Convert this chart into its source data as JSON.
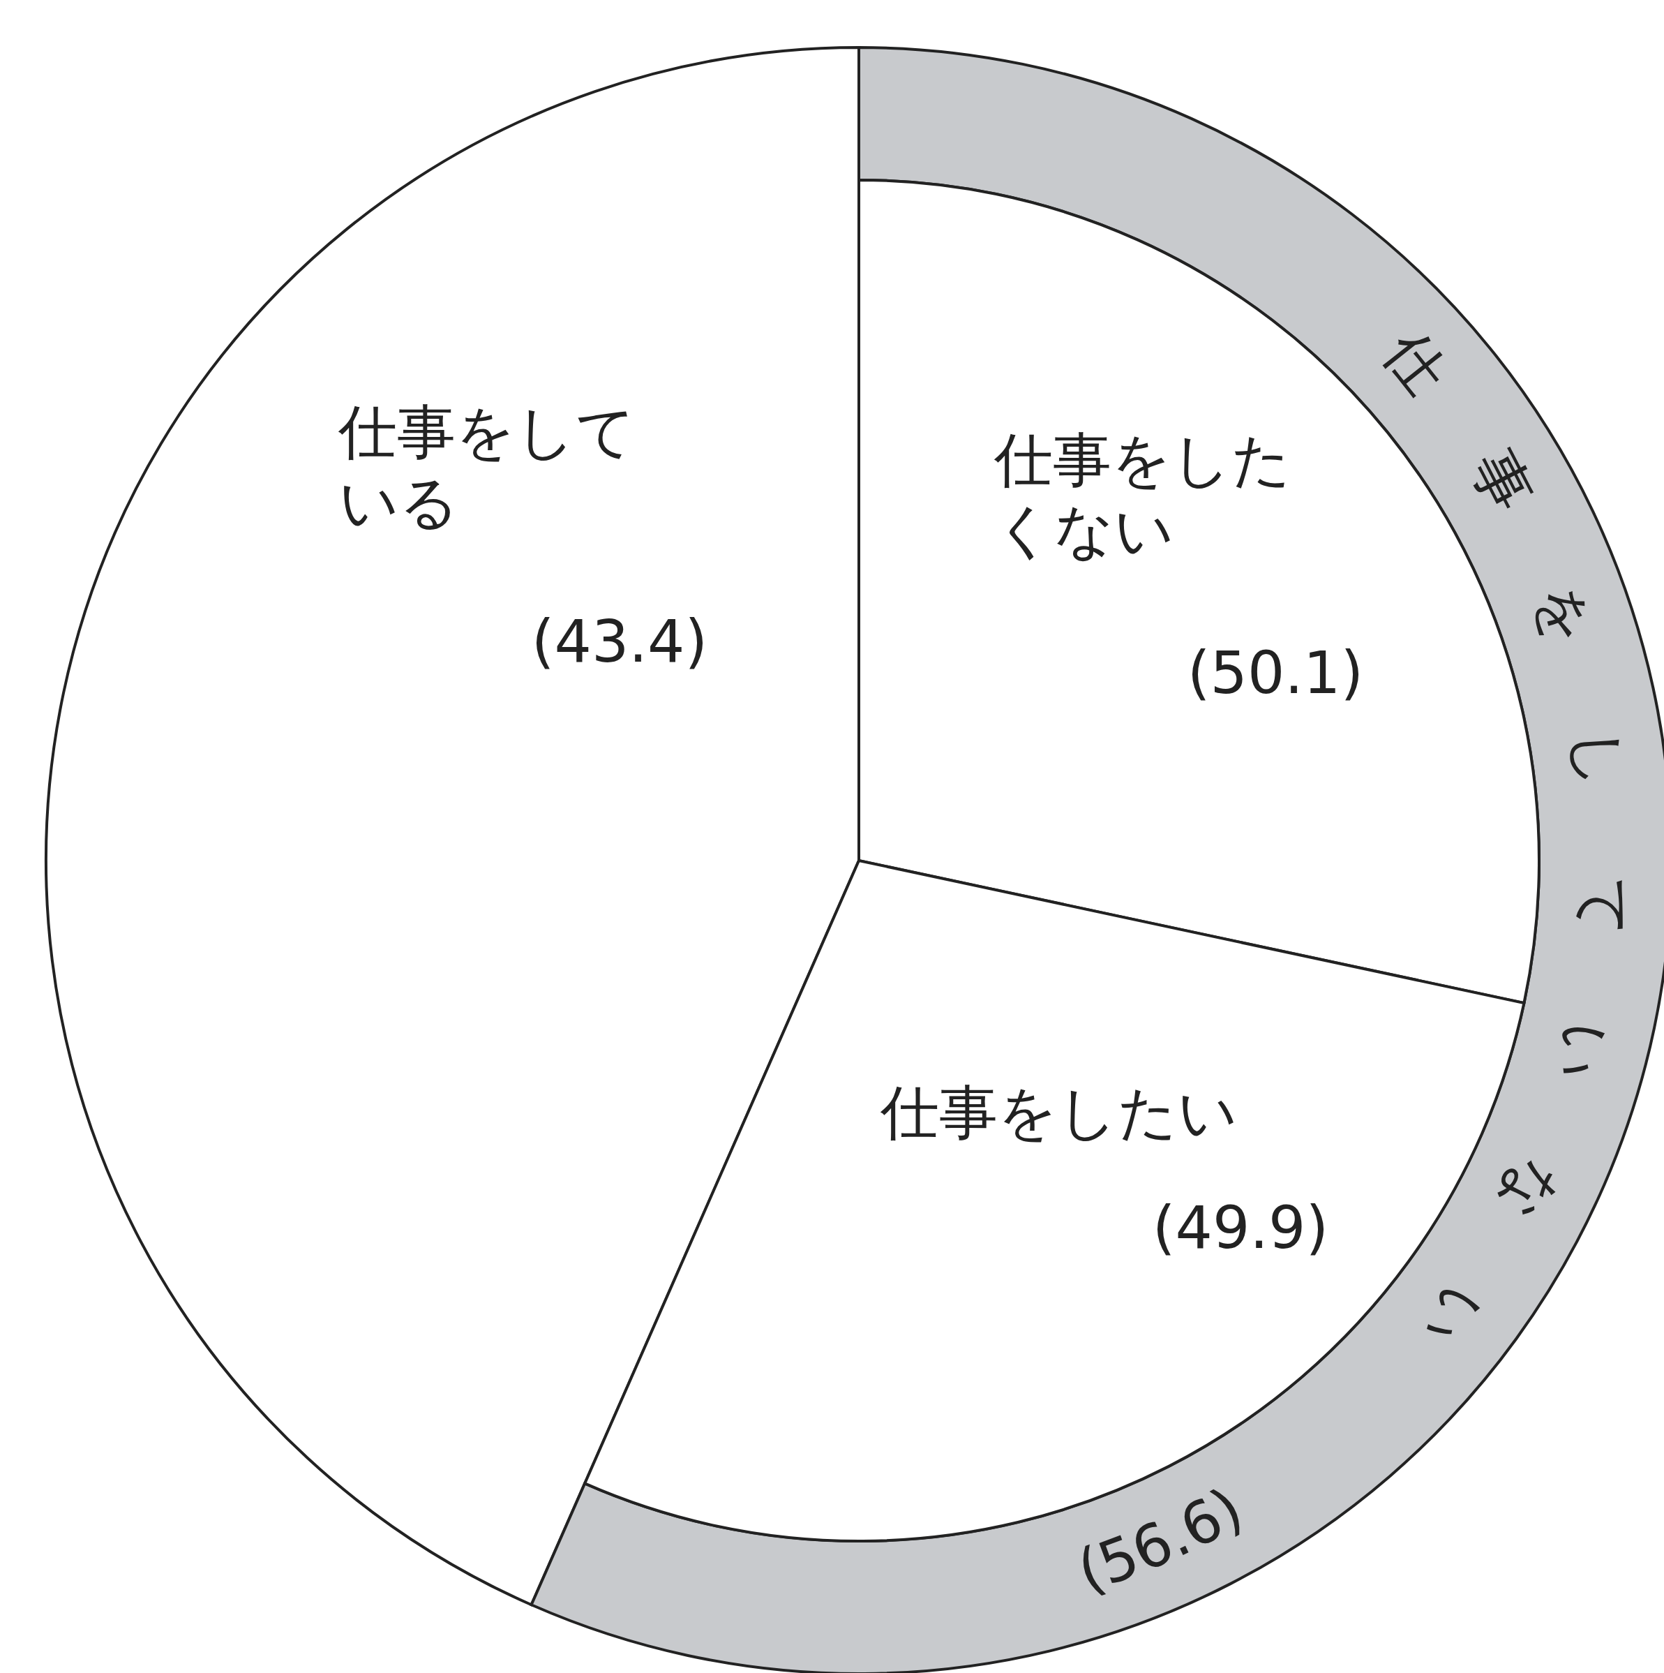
{
  "chart_data": [
    {
      "type": "pie",
      "categories": [
        "仕事をしている",
        "仕事をしていない"
      ],
      "values": [
        43.4,
        56.6
      ],
      "colors": [
        "#ffffff",
        "#c8cacd"
      ],
      "value_labels": [
        "(43.4)",
        "(56.6)"
      ]
    },
    {
      "type": "pie",
      "categories": [
        "仕事をしたくない",
        "仕事をしたい"
      ],
      "values": [
        50.1,
        49.9
      ],
      "colors": [
        "#ffffff",
        "#ffffff"
      ],
      "value_labels": [
        "(50.1)",
        "(49.9)"
      ]
    }
  ]
}
